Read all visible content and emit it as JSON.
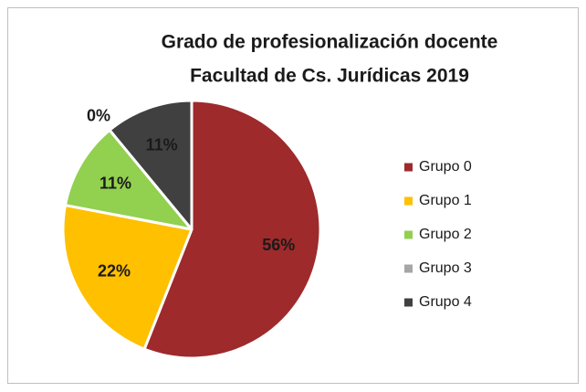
{
  "chart_data": {
    "type": "pie",
    "title": [
      "Grado de profesionalización docente",
      "Facultad de Cs. Jurídicas 2019"
    ],
    "categories": [
      "Grupo 0",
      "Grupo 1",
      "Grupo 2",
      "Grupo 3",
      "Grupo 4"
    ],
    "values": [
      56,
      22,
      11,
      0,
      11
    ],
    "value_labels": [
      "56%",
      "22%",
      "11%",
      "0%",
      "11%"
    ],
    "colors": [
      "#9e2a2b",
      "#ffc000",
      "#92d050",
      "#a6a6a6",
      "#404040"
    ],
    "legend": "right"
  }
}
